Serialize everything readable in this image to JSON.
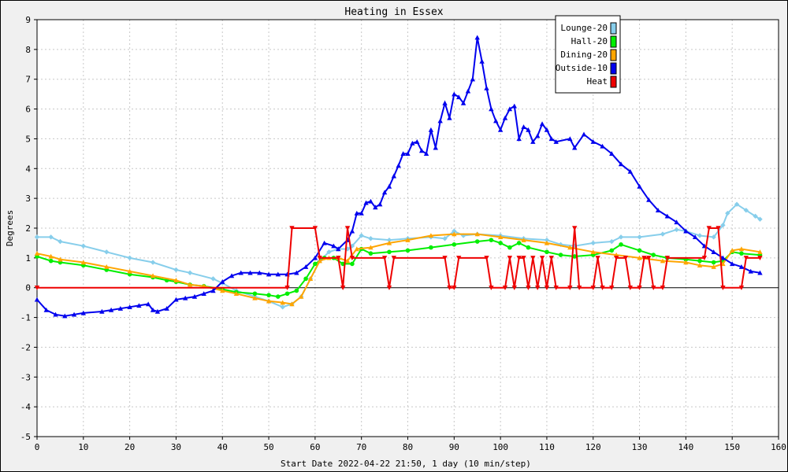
{
  "chart_data": {
    "type": "line",
    "title": "Heating in Essex",
    "xlabel": "Start Date 2022-04-22 21:50, 1 day (10 min/step)",
    "ylabel": "Degrees",
    "xlim": [
      0,
      160
    ],
    "ylim": [
      -5,
      9
    ],
    "x_ticks": [
      "0",
      "10",
      "20",
      "30",
      "40",
      "50",
      "60",
      "70",
      "80",
      "90",
      "100",
      "110",
      "120",
      "130",
      "140",
      "150",
      "160"
    ],
    "y_ticks": [
      "-5",
      "-4",
      "-3",
      "-2",
      "-1",
      "0",
      "1",
      "2",
      "3",
      "4",
      "5",
      "6",
      "7",
      "8",
      "9"
    ],
    "grid": true,
    "legend_position": "top-right",
    "series": [
      {
        "name": "Lounge-20",
        "color": "#87ceeb",
        "marker": "diamond",
        "points": [
          [
            0,
            1.7
          ],
          [
            3,
            1.7
          ],
          [
            5,
            1.55
          ],
          [
            10,
            1.4
          ],
          [
            15,
            1.2
          ],
          [
            20,
            1.0
          ],
          [
            25,
            0.85
          ],
          [
            30,
            0.6
          ],
          [
            33,
            0.5
          ],
          [
            38,
            0.3
          ],
          [
            40,
            0.15
          ],
          [
            43,
            -0.1
          ],
          [
            47,
            -0.3
          ],
          [
            50,
            -0.45
          ],
          [
            53,
            -0.65
          ],
          [
            55,
            -0.55
          ],
          [
            57,
            -0.3
          ],
          [
            59,
            0.3
          ],
          [
            61,
            0.9
          ],
          [
            63,
            1.2
          ],
          [
            65,
            1.3
          ],
          [
            67,
            1.3
          ],
          [
            68,
            1.4
          ],
          [
            70,
            1.75
          ],
          [
            72,
            1.65
          ],
          [
            76,
            1.6
          ],
          [
            80,
            1.65
          ],
          [
            85,
            1.7
          ],
          [
            88,
            1.65
          ],
          [
            90,
            1.9
          ],
          [
            92,
            1.75
          ],
          [
            95,
            1.8
          ],
          [
            100,
            1.75
          ],
          [
            105,
            1.65
          ],
          [
            110,
            1.6
          ],
          [
            113,
            1.45
          ],
          [
            116,
            1.4
          ],
          [
            120,
            1.5
          ],
          [
            124,
            1.55
          ],
          [
            126,
            1.7
          ],
          [
            130,
            1.7
          ],
          [
            135,
            1.8
          ],
          [
            138,
            1.95
          ],
          [
            140,
            1.9
          ],
          [
            143,
            1.75
          ],
          [
            146,
            1.7
          ],
          [
            148,
            2.1
          ],
          [
            149,
            2.5
          ],
          [
            151,
            2.8
          ],
          [
            153,
            2.6
          ],
          [
            155,
            2.4
          ],
          [
            156,
            2.3
          ]
        ]
      },
      {
        "name": "Hall-20",
        "color": "#00ee00",
        "marker": "circle",
        "points": [
          [
            0,
            1.05
          ],
          [
            3,
            0.9
          ],
          [
            5,
            0.85
          ],
          [
            10,
            0.75
          ],
          [
            15,
            0.6
          ],
          [
            20,
            0.45
          ],
          [
            25,
            0.35
          ],
          [
            28,
            0.25
          ],
          [
            30,
            0.2
          ],
          [
            33,
            0.1
          ],
          [
            36,
            0.05
          ],
          [
            40,
            -0.05
          ],
          [
            43,
            -0.15
          ],
          [
            47,
            -0.2
          ],
          [
            50,
            -0.25
          ],
          [
            52,
            -0.3
          ],
          [
            54,
            -0.2
          ],
          [
            56,
            -0.1
          ],
          [
            58,
            0.3
          ],
          [
            60,
            0.8
          ],
          [
            62,
            1.0
          ],
          [
            64,
            1.0
          ],
          [
            66,
            0.8
          ],
          [
            68,
            0.8
          ],
          [
            70,
            1.3
          ],
          [
            72,
            1.15
          ],
          [
            76,
            1.2
          ],
          [
            80,
            1.25
          ],
          [
            85,
            1.35
          ],
          [
            90,
            1.45
          ],
          [
            95,
            1.55
          ],
          [
            98,
            1.6
          ],
          [
            100,
            1.5
          ],
          [
            102,
            1.35
          ],
          [
            104,
            1.5
          ],
          [
            106,
            1.35
          ],
          [
            110,
            1.2
          ],
          [
            113,
            1.1
          ],
          [
            116,
            1.05
          ],
          [
            120,
            1.1
          ],
          [
            124,
            1.25
          ],
          [
            126,
            1.45
          ],
          [
            130,
            1.25
          ],
          [
            133,
            1.1
          ],
          [
            136,
            1.0
          ],
          [
            140,
            0.95
          ],
          [
            143,
            0.9
          ],
          [
            146,
            0.85
          ],
          [
            148,
            0.9
          ],
          [
            150,
            1.2
          ],
          [
            152,
            1.15
          ],
          [
            156,
            1.1
          ]
        ]
      },
      {
        "name": "Dining-20",
        "color": "#ffa500",
        "marker": "triangle-up",
        "points": [
          [
            0,
            1.15
          ],
          [
            3,
            1.05
          ],
          [
            5,
            0.95
          ],
          [
            10,
            0.85
          ],
          [
            15,
            0.7
          ],
          [
            20,
            0.55
          ],
          [
            25,
            0.4
          ],
          [
            30,
            0.25
          ],
          [
            33,
            0.1
          ],
          [
            36,
            0.05
          ],
          [
            40,
            -0.1
          ],
          [
            43,
            -0.2
          ],
          [
            47,
            -0.35
          ],
          [
            50,
            -0.45
          ],
          [
            53,
            -0.5
          ],
          [
            55,
            -0.55
          ],
          [
            57,
            -0.3
          ],
          [
            59,
            0.3
          ],
          [
            61,
            0.9
          ],
          [
            63,
            1.0
          ],
          [
            65,
            1.0
          ],
          [
            67,
            0.9
          ],
          [
            69,
            1.3
          ],
          [
            72,
            1.35
          ],
          [
            76,
            1.5
          ],
          [
            80,
            1.6
          ],
          [
            85,
            1.75
          ],
          [
            90,
            1.8
          ],
          [
            95,
            1.8
          ],
          [
            100,
            1.7
          ],
          [
            105,
            1.6
          ],
          [
            110,
            1.5
          ],
          [
            115,
            1.35
          ],
          [
            120,
            1.2
          ],
          [
            125,
            1.1
          ],
          [
            130,
            1.0
          ],
          [
            135,
            0.9
          ],
          [
            140,
            0.85
          ],
          [
            143,
            0.75
          ],
          [
            146,
            0.7
          ],
          [
            148,
            0.8
          ],
          [
            150,
            1.25
          ],
          [
            152,
            1.3
          ],
          [
            156,
            1.2
          ]
        ]
      },
      {
        "name": "Outside-10",
        "color": "#0000ee",
        "marker": "triangle-up",
        "points": [
          [
            0,
            -0.4
          ],
          [
            2,
            -0.75
          ],
          [
            4,
            -0.9
          ],
          [
            6,
            -0.95
          ],
          [
            8,
            -0.9
          ],
          [
            10,
            -0.85
          ],
          [
            14,
            -0.8
          ],
          [
            16,
            -0.75
          ],
          [
            18,
            -0.7
          ],
          [
            20,
            -0.65
          ],
          [
            22,
            -0.6
          ],
          [
            24,
            -0.55
          ],
          [
            25,
            -0.75
          ],
          [
            26,
            -0.8
          ],
          [
            28,
            -0.7
          ],
          [
            30,
            -0.4
          ],
          [
            32,
            -0.35
          ],
          [
            34,
            -0.3
          ],
          [
            36,
            -0.2
          ],
          [
            38,
            -0.1
          ],
          [
            40,
            0.2
          ],
          [
            42,
            0.4
          ],
          [
            44,
            0.5
          ],
          [
            46,
            0.5
          ],
          [
            48,
            0.5
          ],
          [
            50,
            0.45
          ],
          [
            52,
            0.45
          ],
          [
            54,
            0.45
          ],
          [
            56,
            0.5
          ],
          [
            58,
            0.7
          ],
          [
            60,
            1.0
          ],
          [
            62,
            1.5
          ],
          [
            64,
            1.4
          ],
          [
            65,
            1.3
          ],
          [
            67,
            1.6
          ],
          [
            68,
            1.9
          ],
          [
            69,
            2.5
          ],
          [
            70,
            2.5
          ],
          [
            71,
            2.85
          ],
          [
            72,
            2.9
          ],
          [
            73,
            2.7
          ],
          [
            74,
            2.8
          ],
          [
            75,
            3.2
          ],
          [
            76,
            3.4
          ],
          [
            77,
            3.75
          ],
          [
            78,
            4.1
          ],
          [
            79,
            4.5
          ],
          [
            80,
            4.5
          ],
          [
            81,
            4.85
          ],
          [
            82,
            4.9
          ],
          [
            83,
            4.6
          ],
          [
            84,
            4.5
          ],
          [
            85,
            5.3
          ],
          [
            86,
            4.7
          ],
          [
            87,
            5.6
          ],
          [
            88,
            6.2
          ],
          [
            89,
            5.7
          ],
          [
            90,
            6.5
          ],
          [
            91,
            6.4
          ],
          [
            92,
            6.2
          ],
          [
            93,
            6.6
          ],
          [
            94,
            7.0
          ],
          [
            95,
            8.4
          ],
          [
            96,
            7.6
          ],
          [
            97,
            6.7
          ],
          [
            98,
            6.0
          ],
          [
            99,
            5.6
          ],
          [
            100,
            5.3
          ],
          [
            101,
            5.7
          ],
          [
            102,
            6.0
          ],
          [
            103,
            6.1
          ],
          [
            104,
            5.0
          ],
          [
            105,
            5.4
          ],
          [
            106,
            5.3
          ],
          [
            107,
            4.9
          ],
          [
            108,
            5.1
          ],
          [
            109,
            5.5
          ],
          [
            110,
            5.3
          ],
          [
            111,
            5.0
          ],
          [
            112,
            4.9
          ],
          [
            115,
            5.0
          ],
          [
            116,
            4.7
          ],
          [
            118,
            5.15
          ],
          [
            120,
            4.9
          ],
          [
            122,
            4.75
          ],
          [
            124,
            4.5
          ],
          [
            126,
            4.15
          ],
          [
            128,
            3.9
          ],
          [
            130,
            3.4
          ],
          [
            132,
            2.95
          ],
          [
            134,
            2.6
          ],
          [
            136,
            2.4
          ],
          [
            138,
            2.2
          ],
          [
            140,
            1.9
          ],
          [
            142,
            1.7
          ],
          [
            144,
            1.4
          ],
          [
            146,
            1.2
          ],
          [
            148,
            1.0
          ],
          [
            150,
            0.8
          ],
          [
            152,
            0.7
          ],
          [
            154,
            0.55
          ],
          [
            156,
            0.5
          ]
        ]
      },
      {
        "name": "Heat",
        "color": "#ee0000",
        "marker": "triangle-down",
        "points": [
          [
            0,
            0
          ],
          [
            54,
            0
          ],
          [
            55,
            2
          ],
          [
            60,
            2
          ],
          [
            61,
            1
          ],
          [
            65,
            1
          ],
          [
            66,
            0
          ],
          [
            67,
            2
          ],
          [
            68,
            1
          ],
          [
            75,
            1
          ],
          [
            76,
            0
          ],
          [
            77,
            1
          ],
          [
            88,
            1
          ],
          [
            89,
            0
          ],
          [
            90,
            0
          ],
          [
            91,
            1
          ],
          [
            97,
            1
          ],
          [
            98,
            0
          ],
          [
            101,
            0
          ],
          [
            102,
            1
          ],
          [
            103,
            0
          ],
          [
            104,
            1
          ],
          [
            105,
            1
          ],
          [
            106,
            0
          ],
          [
            107,
            1
          ],
          [
            108,
            0
          ],
          [
            109,
            1
          ],
          [
            110,
            0
          ],
          [
            111,
            1
          ],
          [
            112,
            0
          ],
          [
            115,
            0
          ],
          [
            116,
            2
          ],
          [
            117,
            0
          ],
          [
            120,
            0
          ],
          [
            121,
            1
          ],
          [
            122,
            0
          ],
          [
            124,
            0
          ],
          [
            125,
            1
          ],
          [
            127,
            1
          ],
          [
            128,
            0
          ],
          [
            130,
            0
          ],
          [
            131,
            1
          ],
          [
            132,
            1
          ],
          [
            133,
            0
          ],
          [
            135,
            0
          ],
          [
            136,
            1
          ],
          [
            144,
            1
          ],
          [
            145,
            2
          ],
          [
            147,
            2
          ],
          [
            148,
            0
          ],
          [
            152,
            0
          ],
          [
            153,
            1
          ],
          [
            156,
            1
          ]
        ]
      }
    ]
  }
}
